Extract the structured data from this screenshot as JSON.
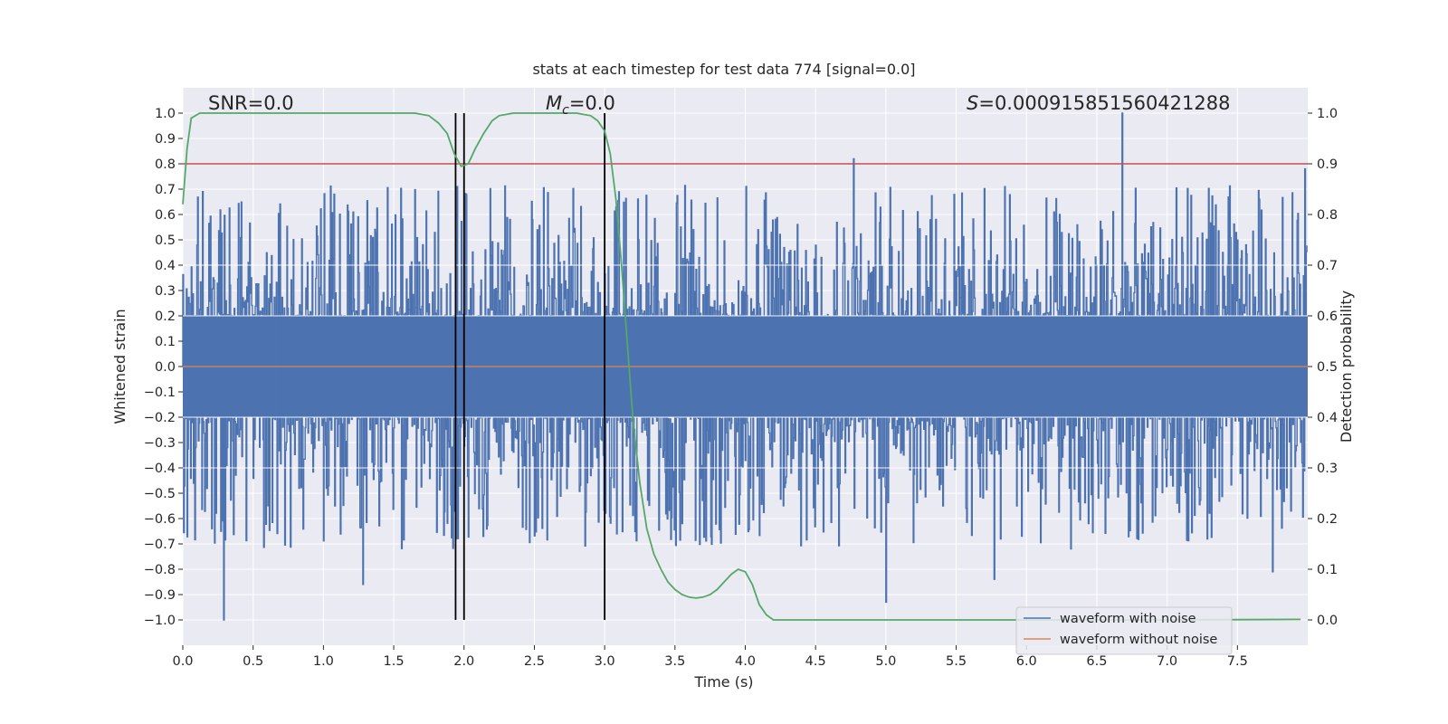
{
  "chart_data": {
    "type": "line",
    "title": "stats at each timestep for test data 774 [signal=0.0]",
    "xlabel": "Time (s)",
    "ylabel_left": "Whitened strain",
    "ylabel_right": "Detection probability",
    "xlim": [
      0.0,
      8.0
    ],
    "ylim_left": [
      -1.1,
      1.1
    ],
    "ylim_right": [
      -0.05,
      1.05
    ],
    "x_ticks": [
      0.0,
      0.5,
      1.0,
      1.5,
      2.0,
      2.5,
      3.0,
      3.5,
      4.0,
      4.5,
      5.0,
      5.5,
      6.0,
      6.5,
      7.0,
      7.5
    ],
    "x_tick_labels": [
      "0.0",
      "0.5",
      "1.0",
      "1.5",
      "2.0",
      "2.5",
      "3.0",
      "3.5",
      "4.0",
      "4.5",
      "5.0",
      "5.5",
      "6.0",
      "6.5",
      "7.0",
      "7.5"
    ],
    "y_left_ticks": [
      1.0,
      0.9,
      0.8,
      0.7,
      0.6,
      0.5,
      0.4,
      0.3,
      0.2,
      0.1,
      0.0,
      -0.1,
      -0.2,
      -0.3,
      -0.4,
      -0.5,
      -0.6,
      -0.7,
      -0.8,
      -0.9,
      -1.0
    ],
    "y_left_tick_labels": [
      "1.0",
      "0.9",
      "0.8",
      "0.7",
      "0.6",
      "0.5",
      "0.4",
      "0.3",
      "0.2",
      "0.1",
      "0.0",
      "−0.1",
      "−0.2",
      "−0.3",
      "−0.4",
      "−0.5",
      "−0.6",
      "−0.7",
      "−0.8",
      "−0.9",
      "−1.0"
    ],
    "y_right_ticks": [
      1.0,
      0.9,
      0.8,
      0.7,
      0.6,
      0.5,
      0.4,
      0.3,
      0.2,
      0.1,
      0.0
    ],
    "y_right_tick_labels": [
      "1.0",
      "0.9",
      "0.8",
      "0.7",
      "0.6",
      "0.5",
      "0.4",
      "0.3",
      "0.2",
      "0.1",
      "0.0"
    ],
    "annotations": {
      "snr": "SNR=0.0",
      "mc_symbol": "M",
      "mc_sub": "c",
      "mc_value": "=0.0",
      "s_symbol": "S",
      "s_value": "=0.0009158515604212​88"
    },
    "threshold_line": {
      "axis": "left",
      "y": 0.8,
      "color": "#c44e52"
    },
    "vertical_lines": [
      {
        "x": 1.94,
        "ymin": -1.0,
        "ymax": 1.0
      },
      {
        "x": 2.0,
        "ymin": -1.0,
        "ymax": 1.0
      },
      {
        "x": 3.0,
        "ymin": -1.0,
        "ymax": 1.0
      }
    ],
    "series": [
      {
        "name": "waveform with noise",
        "axis": "left",
        "color": "#4c72b0",
        "kind": "noise",
        "description": "whitened strain noise, roughly within ±0.45 with spikes up to ±1.0",
        "spikes": [
          {
            "x": 0.29,
            "y": -1.0
          },
          {
            "x": 1.28,
            "y": -0.86
          },
          {
            "x": 4.77,
            "y": 0.82
          },
          {
            "x": 5.0,
            "y": -0.93
          },
          {
            "x": 5.77,
            "y": -0.84
          },
          {
            "x": 6.68,
            "y": 1.0
          },
          {
            "x": 7.75,
            "y": -0.81
          },
          {
            "x": 7.98,
            "y": 0.78
          },
          {
            "x": 1.95,
            "y": 0.71
          },
          {
            "x": 1.94,
            "y": -0.68
          }
        ]
      },
      {
        "name": "waveform without noise",
        "axis": "left",
        "color": "#dd8452",
        "kind": "line",
        "x": [
          0.0,
          8.0
        ],
        "y": [
          0.0,
          0.0
        ]
      },
      {
        "name": "detection probability",
        "axis": "right",
        "color": "#55a868",
        "kind": "line",
        "x": [
          0.0,
          0.03,
          0.06,
          0.12,
          0.2,
          0.5,
          1.0,
          1.5,
          1.65,
          1.75,
          1.82,
          1.88,
          1.93,
          1.98,
          2.03,
          2.08,
          2.14,
          2.2,
          2.25,
          2.35,
          2.5,
          2.8,
          2.9,
          2.95,
          3.0,
          3.04,
          3.08,
          3.12,
          3.16,
          3.2,
          3.25,
          3.3,
          3.35,
          3.4,
          3.45,
          3.5,
          3.55,
          3.6,
          3.65,
          3.7,
          3.75,
          3.8,
          3.85,
          3.9,
          3.95,
          4.0,
          4.05,
          4.1,
          4.15,
          4.2,
          4.3,
          4.5,
          5.0,
          6.0,
          7.0,
          7.95
        ],
        "y": [
          0.82,
          0.93,
          0.99,
          1.0,
          1.0,
          1.0,
          1.0,
          1.0,
          1.0,
          0.995,
          0.98,
          0.96,
          0.92,
          0.895,
          0.9,
          0.93,
          0.96,
          0.985,
          0.995,
          1.0,
          1.0,
          1.0,
          0.995,
          0.985,
          0.965,
          0.92,
          0.83,
          0.7,
          0.55,
          0.4,
          0.27,
          0.18,
          0.13,
          0.1,
          0.075,
          0.06,
          0.05,
          0.045,
          0.043,
          0.045,
          0.05,
          0.06,
          0.075,
          0.09,
          0.1,
          0.095,
          0.07,
          0.03,
          0.01,
          0.0,
          0.0,
          0.0,
          0.0,
          0.0,
          0.0,
          0.001
        ]
      }
    ],
    "legend": {
      "position": "lower-right",
      "entries": [
        {
          "label": "waveform with noise",
          "color": "#4c72b0"
        },
        {
          "label": "waveform without noise",
          "color": "#dd8452"
        }
      ]
    },
    "style": {
      "plot_bg": "#eaeaf2",
      "grid_color": "#ffffff",
      "text_color": "#262626",
      "vline_color": "#000000"
    }
  }
}
